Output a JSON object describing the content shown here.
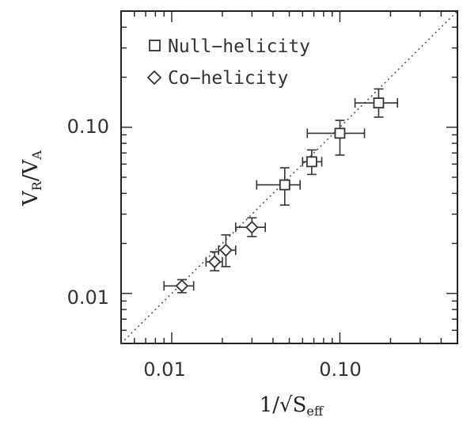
{
  "chart_data": {
    "type": "scatter",
    "xscale": "log",
    "yscale": "log",
    "xlim": [
      0.005,
      0.5
    ],
    "ylim": [
      0.005,
      0.5
    ],
    "x_ticks": [
      0.01,
      0.1
    ],
    "x_tick_labels": [
      "0.01",
      "0.10"
    ],
    "y_ticks": [
      0.01,
      0.1
    ],
    "y_tick_labels": [
      "0.01",
      "0.10"
    ],
    "xlabel": {
      "prefix": "1/",
      "root": "√",
      "main": "S",
      "sub": "eff"
    },
    "ylabel": {
      "a": "V",
      "a_sub": "R",
      "slash": "/",
      "b": "V",
      "b_sub": "A"
    },
    "legend": {
      "placement": "top-left",
      "entries": [
        {
          "label": "Null−helicity",
          "marker": "square"
        },
        {
          "label": "Co−helicity",
          "marker": "diamond"
        }
      ]
    },
    "reference_line": {
      "style": "dotted",
      "relation": "y = x"
    },
    "series": [
      {
        "name": "Null−helicity",
        "marker": "square",
        "points": [
          {
            "x": 0.047,
            "y": 0.045,
            "xlo": 0.032,
            "xhi": 0.058,
            "ylo": 0.034,
            "yhi": 0.057
          },
          {
            "x": 0.068,
            "y": 0.062,
            "xlo": 0.06,
            "xhi": 0.078,
            "ylo": 0.052,
            "yhi": 0.073
          },
          {
            "x": 0.1,
            "y": 0.092,
            "xlo": 0.064,
            "xhi": 0.14,
            "ylo": 0.068,
            "yhi": 0.11
          },
          {
            "x": 0.17,
            "y": 0.14,
            "xlo": 0.123,
            "xhi": 0.22,
            "ylo": 0.115,
            "yhi": 0.17
          }
        ]
      },
      {
        "name": "Co−helicity",
        "marker": "diamond",
        "points": [
          {
            "x": 0.0115,
            "y": 0.0111,
            "xlo": 0.009,
            "xhi": 0.0135,
            "ylo": 0.0101,
            "yhi": 0.0121
          },
          {
            "x": 0.018,
            "y": 0.0155,
            "xlo": 0.016,
            "xhi": 0.02,
            "ylo": 0.0137,
            "yhi": 0.0178
          },
          {
            "x": 0.021,
            "y": 0.0182,
            "xlo": 0.019,
            "xhi": 0.024,
            "ylo": 0.0145,
            "yhi": 0.0225
          },
          {
            "x": 0.03,
            "y": 0.025,
            "xlo": 0.024,
            "xhi": 0.036,
            "ylo": 0.022,
            "yhi": 0.0285
          }
        ]
      }
    ]
  }
}
